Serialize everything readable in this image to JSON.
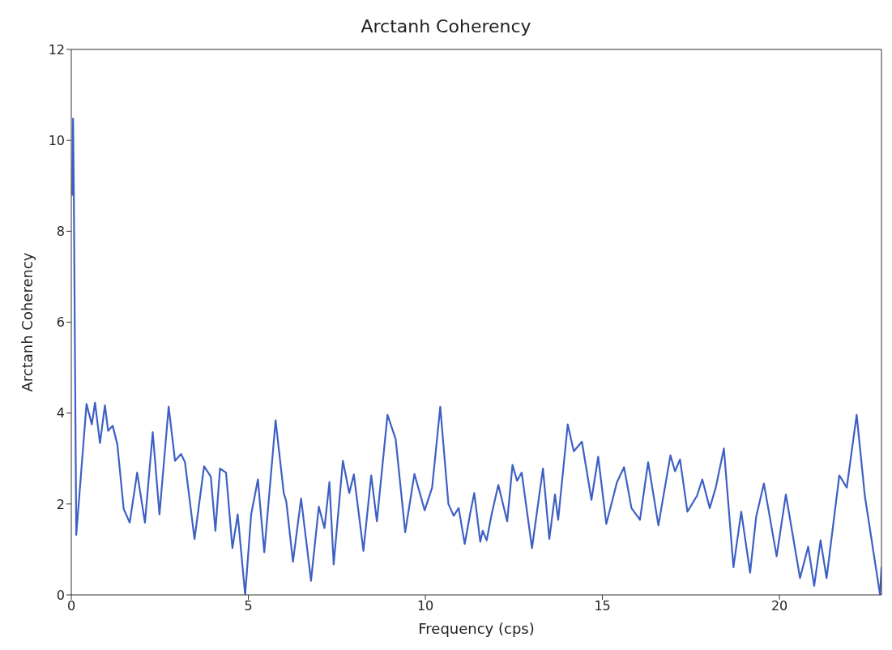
{
  "chart_data": {
    "type": "line",
    "title": "Arctanh Coherency",
    "xlabel": "Frequency (cps)",
    "ylabel": "Arctanh Coherency",
    "x": [
      0.03,
      0.05,
      0.07,
      0.14,
      0.43,
      0.58,
      0.67,
      0.81,
      0.95,
      1.04,
      1.17,
      1.3,
      1.48,
      1.65,
      1.86,
      2.08,
      2.3,
      2.49,
      2.75,
      2.93,
      3.1,
      3.21,
      3.48,
      3.75,
      3.94,
      4.07,
      4.2,
      4.37,
      4.55,
      4.7,
      4.91,
      5.08,
      5.27,
      5.45,
      5.77,
      6.0,
      6.07,
      6.26,
      6.49,
      6.77,
      6.99,
      7.15,
      7.29,
      7.41,
      7.67,
      7.85,
      7.98,
      8.25,
      8.47,
      8.63,
      8.93,
      9.16,
      9.43,
      9.69,
      9.98,
      10.19,
      10.42,
      10.65,
      10.8,
      10.94,
      11.11,
      11.26,
      11.38,
      11.55,
      11.62,
      11.73,
      11.87,
      12.06,
      12.31,
      12.46,
      12.59,
      12.72,
      13.01,
      13.32,
      13.5,
      13.66,
      13.75,
      14.02,
      14.19,
      14.42,
      14.69,
      14.88,
      15.11,
      15.41,
      15.61,
      15.82,
      16.06,
      16.29,
      16.58,
      16.92,
      17.05,
      17.19,
      17.4,
      17.67,
      17.82,
      18.03,
      18.2,
      18.43,
      18.7,
      18.92,
      19.17,
      19.34,
      19.56,
      19.92,
      20.18,
      20.58,
      20.81,
      20.98,
      21.16,
      21.33,
      21.69,
      21.9,
      22.18,
      22.41,
      22.84,
      22.88
    ],
    "series": [
      {
        "color": "#3d60c4",
        "values": [
          8.8,
          10.48,
          9.0,
          1.32,
          4.2,
          3.75,
          4.23,
          3.34,
          4.17,
          3.61,
          3.72,
          3.31,
          1.89,
          1.59,
          2.69,
          1.59,
          3.58,
          1.77,
          4.14,
          2.95,
          3.1,
          2.92,
          1.23,
          2.83,
          2.6,
          1.41,
          2.78,
          2.69,
          1.03,
          1.77,
          0.0,
          1.77,
          2.54,
          0.94,
          3.84,
          2.24,
          2.06,
          0.73,
          2.12,
          0.31,
          1.94,
          1.47,
          2.48,
          0.67,
          2.95,
          2.24,
          2.65,
          0.97,
          2.63,
          1.62,
          3.96,
          3.43,
          1.38,
          2.66,
          1.86,
          2.36,
          4.14,
          2.0,
          1.74,
          1.91,
          1.12,
          1.77,
          2.24,
          1.17,
          1.41,
          1.2,
          1.77,
          2.42,
          1.62,
          2.86,
          2.51,
          2.69,
          1.03,
          2.78,
          1.23,
          2.21,
          1.65,
          3.75,
          3.16,
          3.37,
          2.09,
          3.04,
          1.56,
          2.48,
          2.81,
          1.91,
          1.65,
          2.92,
          1.53,
          3.07,
          2.72,
          2.98,
          1.83,
          2.18,
          2.54,
          1.91,
          2.36,
          3.22,
          0.61,
          1.83,
          0.49,
          1.71,
          2.45,
          0.85,
          2.21,
          0.37,
          1.06,
          0.2,
          1.2,
          0.37,
          2.63,
          2.36,
          3.96,
          2.18,
          0.0,
          0.6
        ]
      }
    ],
    "xlim": [
      0,
      22.88
    ],
    "xticks": [
      0,
      5,
      10,
      15,
      20
    ],
    "ylim": [
      0,
      12
    ],
    "yticks": [
      0,
      2,
      4,
      6,
      8,
      10,
      12
    ],
    "grid": false,
    "legend": false,
    "marker": "none",
    "line_style": "solid"
  }
}
